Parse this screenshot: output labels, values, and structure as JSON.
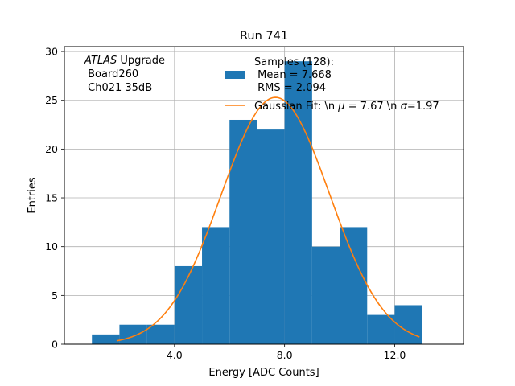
{
  "chart_data": {
    "type": "bar",
    "title": "Run 741",
    "xlabel": "Energy [ADC Counts]",
    "ylabel": "Entries",
    "xlim": [
      0.0,
      14.5
    ],
    "ylim": [
      0,
      30.5
    ],
    "xticks": [
      4.0,
      8.0,
      12.0
    ],
    "xtick_labels": [
      "4.0",
      "8.0",
      "12.0"
    ],
    "yticks": [
      0,
      5,
      10,
      15,
      20,
      25,
      30
    ],
    "ytick_labels": [
      "0",
      "5",
      "10",
      "15",
      "20",
      "25",
      "30"
    ],
    "grid": true,
    "bins": [
      {
        "x0": 1.0,
        "x1": 2.0,
        "count": 1
      },
      {
        "x0": 2.0,
        "x1": 3.0,
        "count": 2
      },
      {
        "x0": 3.0,
        "x1": 4.0,
        "count": 2
      },
      {
        "x0": 4.0,
        "x1": 5.0,
        "count": 8
      },
      {
        "x0": 5.0,
        "x1": 6.0,
        "count": 12
      },
      {
        "x0": 6.0,
        "x1": 7.0,
        "count": 23
      },
      {
        "x0": 7.0,
        "x1": 8.0,
        "count": 22
      },
      {
        "x0": 8.0,
        "x1": 9.0,
        "count": 29
      },
      {
        "x0": 9.0,
        "x1": 10.0,
        "count": 10
      },
      {
        "x0": 10.0,
        "x1": 11.0,
        "count": 12
      },
      {
        "x0": 11.0,
        "x1": 12.0,
        "count": 3
      },
      {
        "x0": 12.0,
        "x1": 13.0,
        "count": 4
      }
    ],
    "fit": {
      "type": "gaussian",
      "mu": 7.67,
      "sigma": 1.97,
      "amplitude": 25.3,
      "x_range": [
        1.9,
        12.9
      ]
    },
    "colors": {
      "bars": "#1f77b4",
      "fit": "#ff7f0e",
      "grid": "#b0b0b0"
    },
    "annotation": {
      "line1_italic": "ATLAS",
      "line1_rest": " Upgrade",
      "line2": " Board260",
      "line3": " Ch021 35dB"
    },
    "legend": {
      "placement": "upper-right",
      "hist_label_lines": [
        "Samples (128):",
        " Mean = 7.668",
        " RMS = 2.094"
      ],
      "fit_label_prefix": "Gaussian Fit: \\n ",
      "fit_mu_symbol": "μ",
      "fit_mu_text": " = 7.67 \\n ",
      "fit_sigma_symbol": "σ",
      "fit_sigma_text": "=1.97"
    }
  }
}
